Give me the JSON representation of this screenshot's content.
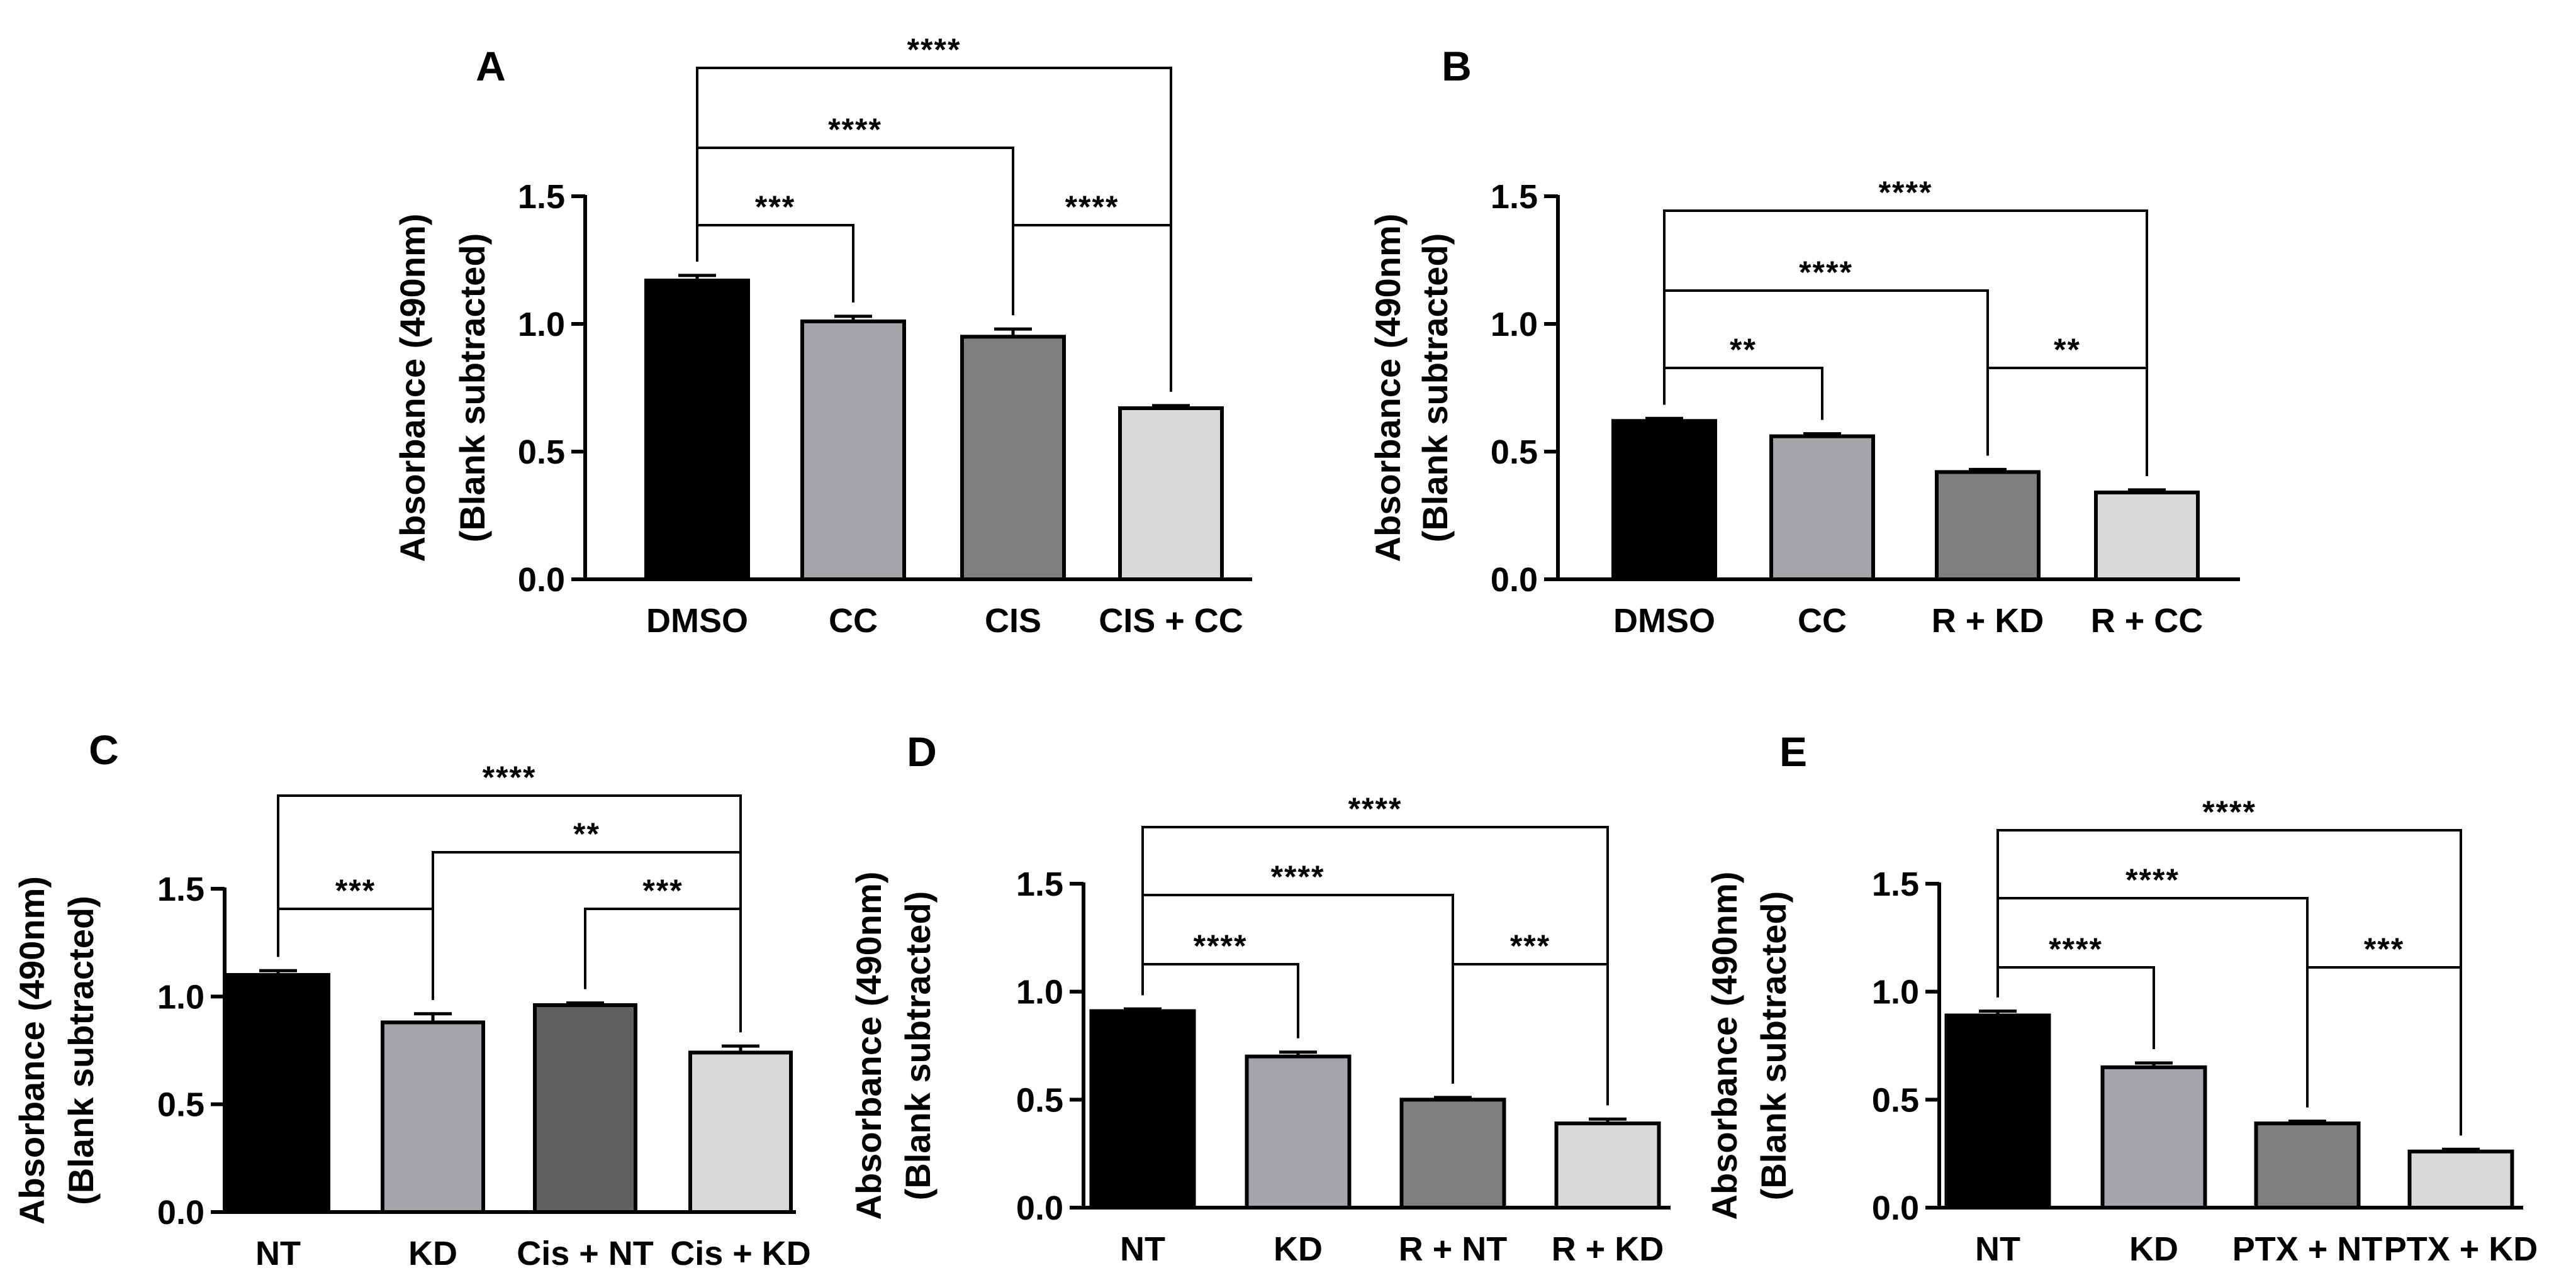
{
  "figure_label": "Absorbance bar chart panels A–E",
  "chart_data": [
    {
      "panel": "A",
      "type": "bar",
      "ylabel_line1": "Absorbance (490nm)",
      "ylabel_line2": "(Blank subtracted)",
      "ylim": [
        0,
        1.5
      ],
      "yticks": [
        "0.0",
        "0.5",
        "1.0",
        "1.5"
      ],
      "categories": [
        "DMSO",
        "CC",
        "CIS",
        "CIS + CC"
      ],
      "values": [
        1.17,
        1.01,
        0.95,
        0.67
      ],
      "errors": [
        0.02,
        0.02,
        0.03,
        0.01
      ],
      "bar_colors": [
        "#000000",
        "#a5a5a9",
        "#7f7f7f",
        "#d9d9d9"
      ],
      "comparisons": [
        {
          "from": 0,
          "to": 1,
          "label": "***"
        },
        {
          "from": 2,
          "to": 3,
          "label": "****"
        },
        {
          "from": 0,
          "to": 2,
          "label": "****"
        },
        {
          "from": 0,
          "to": 3,
          "label": "****"
        }
      ]
    },
    {
      "panel": "B",
      "type": "bar",
      "ylabel_line1": "Absorbance (490nm)",
      "ylabel_line2": "(Blank subtracted)",
      "ylim": [
        0,
        1.5
      ],
      "yticks": [
        "0.0",
        "0.5",
        "1.0",
        "1.5"
      ],
      "categories": [
        "DMSO",
        "CC",
        "R + KD",
        "R + CC"
      ],
      "values": [
        0.62,
        0.56,
        0.42,
        0.34
      ],
      "errors": [
        0.01,
        0.01,
        0.01,
        0.01
      ],
      "bar_colors": [
        "#000000",
        "#a5a5a9",
        "#7f7f7f",
        "#d9d9d9"
      ],
      "comparisons": [
        {
          "from": 0,
          "to": 1,
          "label": "**"
        },
        {
          "from": 2,
          "to": 3,
          "label": "**"
        },
        {
          "from": 0,
          "to": 2,
          "label": "****"
        },
        {
          "from": 0,
          "to": 3,
          "label": "****"
        }
      ]
    },
    {
      "panel": "C",
      "type": "bar",
      "ylabel_line1": "Absorbance (490nm)",
      "ylabel_line2": "(Blank subtracted)",
      "ylim": [
        0,
        1.5
      ],
      "yticks": [
        "0.0",
        "0.5",
        "1.0",
        "1.5"
      ],
      "categories": [
        "NT",
        "KD",
        "Cis + NT",
        "Cis + KD"
      ],
      "values": [
        1.1,
        0.88,
        0.96,
        0.74
      ],
      "errors": [
        0.02,
        0.04,
        0.01,
        0.03
      ],
      "bar_colors": [
        "#000000",
        "#a5a5a9",
        "#606060",
        "#d9d9d9"
      ],
      "comparisons": [
        {
          "from": 0,
          "to": 1,
          "label": "***"
        },
        {
          "from": 2,
          "to": 3,
          "label": "***"
        },
        {
          "from": 1,
          "to": 3,
          "label": "**"
        },
        {
          "from": 0,
          "to": 3,
          "label": "****"
        }
      ]
    },
    {
      "panel": "D",
      "type": "bar",
      "ylabel_line1": "Absorbance (490nm)",
      "ylabel_line2": "(Blank subtracted)",
      "ylim": [
        0,
        1.5
      ],
      "yticks": [
        "0.0",
        "0.5",
        "1.0",
        "1.5"
      ],
      "categories": [
        "NT",
        "KD",
        "R + NT",
        "R + KD"
      ],
      "values": [
        0.91,
        0.7,
        0.5,
        0.39
      ],
      "errors": [
        0.01,
        0.02,
        0.01,
        0.02
      ],
      "bar_colors": [
        "#000000",
        "#a5a5a9",
        "#7f7f7f",
        "#d9d9d9"
      ],
      "comparisons": [
        {
          "from": 0,
          "to": 1,
          "label": "****"
        },
        {
          "from": 2,
          "to": 3,
          "label": "***"
        },
        {
          "from": 0,
          "to": 2,
          "label": "****"
        },
        {
          "from": 0,
          "to": 3,
          "label": "****"
        }
      ]
    },
    {
      "panel": "E",
      "type": "bar",
      "ylabel_line1": "Absorbance (490nm)",
      "ylabel_line2": "(Blank subtracted)",
      "ylim": [
        0,
        1.5
      ],
      "yticks": [
        "0.0",
        "0.5",
        "1.0",
        "1.5"
      ],
      "categories": [
        "NT",
        "KD",
        "PTX + NT",
        "PTX + KD"
      ],
      "values": [
        0.89,
        0.65,
        0.39,
        0.26
      ],
      "errors": [
        0.02,
        0.02,
        0.01,
        0.01
      ],
      "bar_colors": [
        "#000000",
        "#a5a5a9",
        "#7f7f7f",
        "#d9d9d9"
      ],
      "comparisons": [
        {
          "from": 0,
          "to": 1,
          "label": "****"
        },
        {
          "from": 2,
          "to": 3,
          "label": "***"
        },
        {
          "from": 0,
          "to": 2,
          "label": "****"
        },
        {
          "from": 0,
          "to": 3,
          "label": "****"
        }
      ]
    }
  ]
}
